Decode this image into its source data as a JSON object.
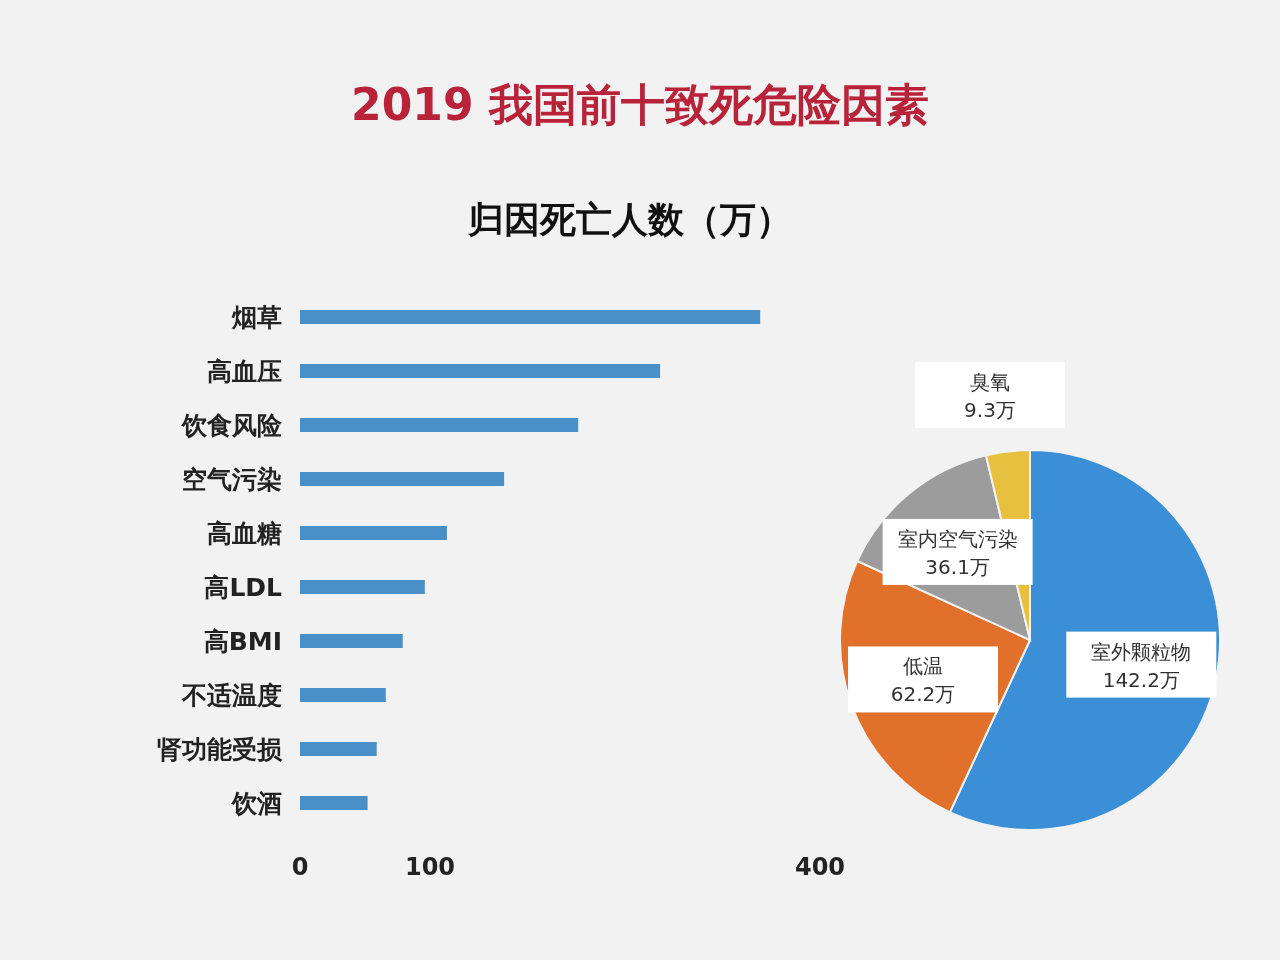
{
  "chart_data": [
    {
      "type": "bar",
      "orientation": "horizontal",
      "title": "2019 我国前十致死危险因素",
      "subtitle": "归因死亡人数（万）",
      "categories": [
        "烟草",
        "高血压",
        "饮食风险",
        "空气污染",
        "高血糖",
        "高LDL",
        "高BMI",
        "不适温度",
        "肾功能受损",
        "饮酒"
      ],
      "values": [
        354,
        277,
        214,
        157,
        113,
        96,
        79,
        66,
        59,
        52
      ],
      "color": "#4a90c8",
      "xlim": [
        0,
        400
      ],
      "xticks": [
        0,
        100,
        400
      ],
      "grid": false
    },
    {
      "type": "pie",
      "categories": [
        "室外颗粒物",
        "低温",
        "室内空气污染",
        "臭氧"
      ],
      "values": [
        142.2,
        62.2,
        36.1,
        9.3
      ],
      "value_labels": [
        "142.2万",
        "62.2万",
        "36.1万",
        "9.3万"
      ],
      "colors": [
        "#3b8fd6",
        "#e0702a",
        "#9c9c9c",
        "#e8c040"
      ]
    }
  ]
}
